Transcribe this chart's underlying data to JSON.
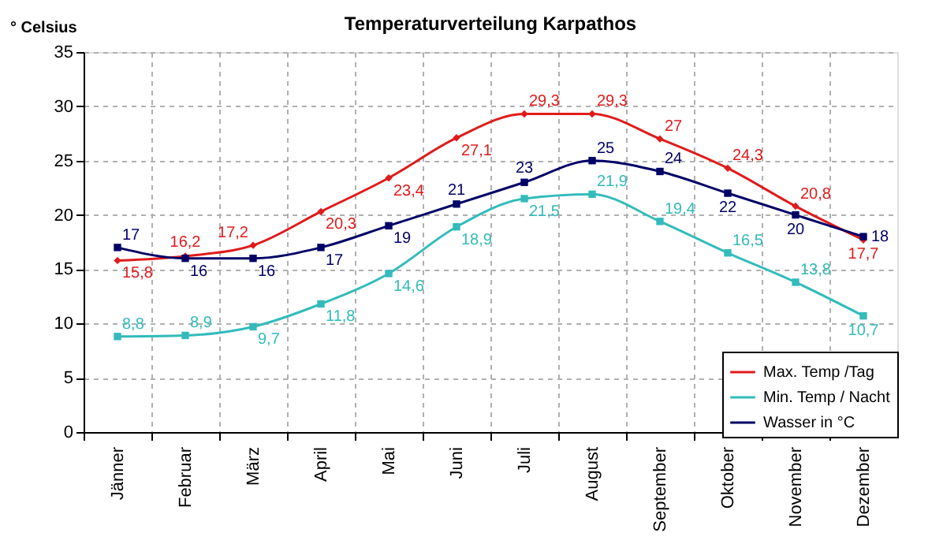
{
  "chart_data": {
    "type": "line",
    "title": "Temperaturverteilung Karpathos",
    "ylabel": "° Celsius",
    "categories": [
      "Jänner",
      "Februar",
      "März",
      "April",
      "Mai",
      "Juni",
      "Juli",
      "August",
      "September",
      "Oktober",
      "November",
      "Dezember"
    ],
    "ylim": [
      0,
      35
    ],
    "yticks": [
      0,
      5,
      10,
      15,
      20,
      25,
      30,
      35
    ],
    "grid": true,
    "legend": "bottom right",
    "line_style": "solid",
    "series": [
      {
        "name": "Max. Temp /Tag",
        "color": "#e01b1b",
        "marker": "diamond",
        "values": [
          15.8,
          16.2,
          17.2,
          20.3,
          23.4,
          27.1,
          29.3,
          29.3,
          27,
          24.3,
          20.8,
          17.7
        ],
        "value_labels": [
          "15,8",
          "16,2",
          "17,2",
          "20,3",
          "23,4",
          "27,1",
          "29,3",
          "29,3",
          "27",
          "24,3",
          "20,8",
          "17,7"
        ]
      },
      {
        "name": "Min. Temp / Nacht",
        "color": "#33bbbb",
        "marker": "square",
        "values": [
          8.8,
          8.9,
          9.7,
          11.8,
          14.6,
          18.9,
          21.5,
          21.9,
          19.4,
          16.5,
          13.8,
          10.7
        ],
        "value_labels": [
          "8,8",
          "8,9",
          "9,7",
          "11,8",
          "14,6",
          "18,9",
          "21,5",
          "21,9",
          "19,4",
          "16,5",
          "13,8",
          "10,7"
        ]
      },
      {
        "name": "Wasser in °C",
        "color": "#000066",
        "marker": "square",
        "values": [
          17,
          16,
          16,
          17,
          19,
          21,
          23,
          25,
          24,
          22,
          20,
          18
        ],
        "value_labels": [
          "17",
          "16",
          "16",
          "17",
          "19",
          "21",
          "23",
          "25",
          "24",
          "22",
          "20",
          "18"
        ]
      }
    ]
  }
}
